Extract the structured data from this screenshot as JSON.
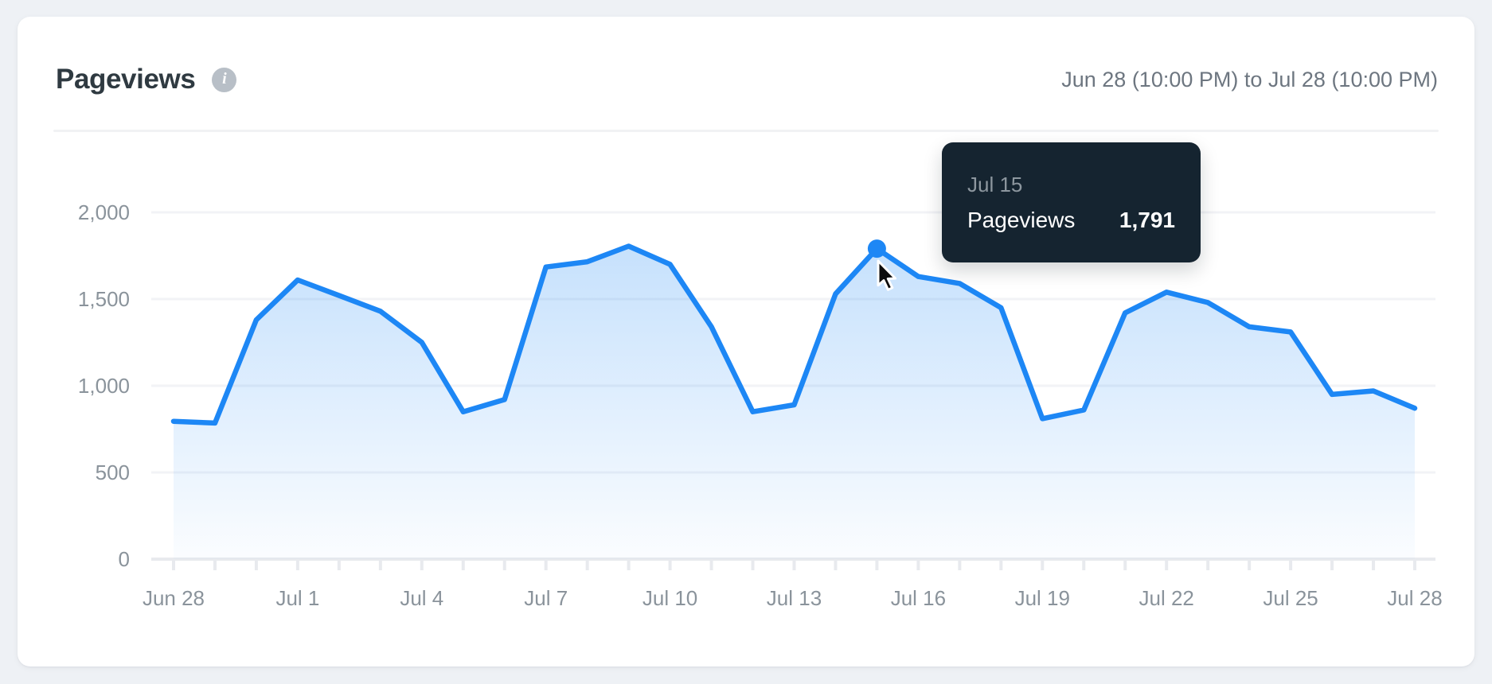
{
  "header": {
    "title": "Pageviews",
    "info_glyph": "i",
    "date_range": "Jun 28 (10:00 PM) to Jul 28 (10:00 PM)"
  },
  "tooltip": {
    "date": "Jul 15",
    "label": "Pageviews",
    "value": "1,791"
  },
  "chart_data": {
    "type": "area",
    "title": "Pageviews",
    "x": [
      "Jun 28",
      "Jun 29",
      "Jun 30",
      "Jul 1",
      "Jul 2",
      "Jul 3",
      "Jul 4",
      "Jul 5",
      "Jul 6",
      "Jul 7",
      "Jul 8",
      "Jul 9",
      "Jul 10",
      "Jul 11",
      "Jul 12",
      "Jul 13",
      "Jul 14",
      "Jul 15",
      "Jul 16",
      "Jul 17",
      "Jul 18",
      "Jul 19",
      "Jul 20",
      "Jul 21",
      "Jul 22",
      "Jul 23",
      "Jul 24",
      "Jul 25",
      "Jul 26",
      "Jul 27",
      "Jul 28"
    ],
    "values": [
      795,
      785,
      1380,
      1610,
      1520,
      1430,
      1250,
      850,
      920,
      1685,
      1715,
      1805,
      1700,
      1340,
      850,
      890,
      1530,
      1791,
      1630,
      1590,
      1450,
      810,
      860,
      1420,
      1540,
      1480,
      1340,
      1310,
      950,
      970,
      870
    ],
    "y_ticks": [
      0,
      500,
      1000,
      1500,
      2000
    ],
    "y_tick_labels": [
      "0",
      "500",
      "1,000",
      "1,500",
      "2,000"
    ],
    "label_every": 3,
    "ylim": [
      0,
      2000
    ],
    "grid": true,
    "legend": "none",
    "highlight": {
      "index": 17,
      "label": "Jul 15",
      "value": 1791
    },
    "colors": {
      "line": "#1d87f5",
      "fill_top": "rgba(30,136,245,0.28)",
      "fill_bottom": "rgba(30,136,245,0.02)",
      "grid": "#f2f3f6",
      "axis": "#e8eaee",
      "tick_text": "#8a939b"
    }
  }
}
